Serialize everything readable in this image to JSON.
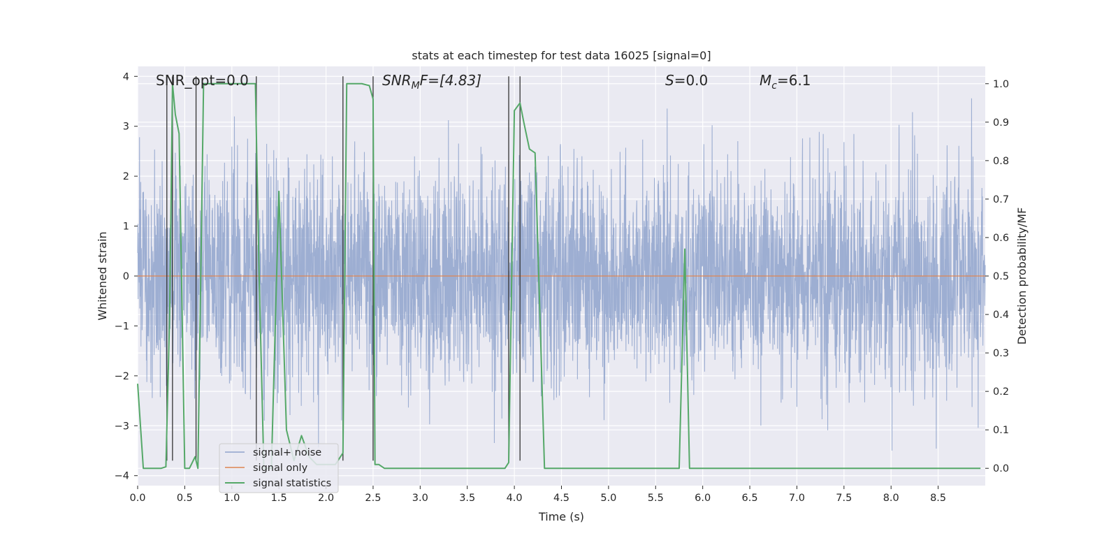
{
  "chart_data": {
    "type": "line",
    "title": "stats at each timestep for test data 16025 [signal=0]",
    "xlabel": "Time (s)",
    "ylabel_left": "Whitened strain",
    "ylabel_right": "Detection probability/MF",
    "xlim": [
      0.0,
      9.0
    ],
    "ylim_left": [
      -4.2,
      4.2
    ],
    "ylim_right": [
      -0.045,
      1.045
    ],
    "xticks": [
      "0.0",
      "0.5",
      "1.0",
      "1.5",
      "2.0",
      "2.5",
      "3.0",
      "3.5",
      "4.0",
      "4.5",
      "5.0",
      "5.5",
      "6.0",
      "6.5",
      "7.0",
      "7.5",
      "8.0",
      "8.5"
    ],
    "yticks_left": [
      "−4",
      "−3",
      "−2",
      "−1",
      "0",
      "1",
      "2",
      "3",
      "4"
    ],
    "yticks_right": [
      "0.0",
      "0.1",
      "0.2",
      "0.3",
      "0.4",
      "0.5",
      "0.6",
      "0.7",
      "0.8",
      "0.9",
      "1.0"
    ],
    "grid": true,
    "legend_position": "lower-left",
    "annotations": {
      "snr_opt": "SNR_opt=0.0",
      "snr_mf_base": "SNR",
      "snr_mf_sub": "M",
      "snr_mf_rest": "F=[4.83]",
      "s_var": "S",
      "s_val": "=0.0",
      "mc_base": "M",
      "mc_sub": "c",
      "mc_val": "=6.1"
    },
    "series": [
      {
        "name": "signal+ noise",
        "color": "#8fa3cc",
        "axis": "left",
        "style": "dense noise, roughly Gaussian, amplitude about ±1.3 with spikes to about ±3.7",
        "y_range": [
          -3.7,
          4.0
        ]
      },
      {
        "name": "signal only",
        "color": "#dd8452",
        "axis": "left",
        "x": [
          0.0,
          9.0
        ],
        "y": [
          0.0,
          0.0
        ]
      },
      {
        "name": "signal statistics",
        "color": "#55a868",
        "axis": "right",
        "x": [
          0.0,
          0.06,
          0.15,
          0.25,
          0.3,
          0.34,
          0.37,
          0.4,
          0.44,
          0.5,
          0.55,
          0.61,
          0.64,
          0.7,
          0.75,
          0.9,
          1.1,
          1.25,
          1.29,
          1.34,
          1.42,
          1.5,
          1.58,
          1.66,
          1.74,
          1.82,
          1.9,
          2.0,
          2.1,
          2.18,
          2.22,
          2.26,
          2.3,
          2.38,
          2.46,
          2.5,
          2.52,
          2.56,
          2.62,
          3.0,
          3.5,
          3.9,
          3.94,
          4.0,
          4.06,
          4.1,
          4.16,
          4.22,
          4.32,
          4.4,
          4.6,
          5.0,
          5.5,
          5.75,
          5.81,
          5.86,
          5.92,
          6.2,
          6.5,
          7.0,
          7.5,
          8.0,
          8.5,
          8.95
        ],
        "y": [
          0.22,
          0.0,
          0.0,
          0.0,
          0.004,
          0.4,
          1.0,
          0.92,
          0.87,
          0.0,
          0.0,
          0.03,
          0.0,
          1.0,
          1.0,
          1.0,
          1.0,
          1.0,
          0.5,
          0.0,
          0.0,
          0.72,
          0.1,
          0.02,
          0.085,
          0.03,
          0.01,
          0.01,
          0.01,
          0.04,
          1.0,
          1.0,
          1.0,
          1.0,
          0.995,
          0.96,
          0.01,
          0.01,
          0.0,
          0.0,
          0.0,
          0.0,
          0.015,
          0.93,
          0.95,
          0.9,
          0.83,
          0.82,
          0.0,
          0.0,
          0.0,
          0.0,
          0.0,
          0.0,
          0.57,
          0.0,
          0.0,
          0.0,
          0.0,
          0.0,
          0.0,
          0.0,
          0.0,
          0.0
        ]
      }
    ],
    "vertical_markers": {
      "color": "#333333",
      "x": [
        0.31,
        0.37,
        0.62,
        1.26,
        2.18,
        2.5,
        3.94,
        4.06
      ],
      "y_range": [
        -3.7,
        4.0
      ]
    }
  }
}
